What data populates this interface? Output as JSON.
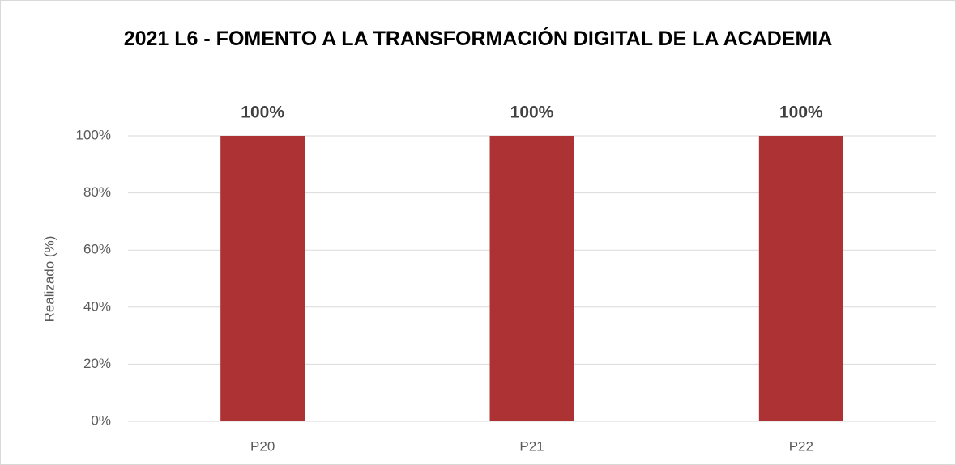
{
  "chart_data": {
    "type": "bar",
    "title": "2021 L6 - FOMENTO A LA TRANSFORMACIÓN DIGITAL DE LA ACADEMIA",
    "y_label": "Realizado (%)",
    "categories": [
      "P20",
      "P21",
      "P22"
    ],
    "values": [
      100,
      100,
      100
    ],
    "value_labels": [
      "100%",
      "100%",
      "100%"
    ],
    "color": "#ad3234",
    "ylim": [
      0,
      100
    ],
    "yticks": [
      {
        "value": 0,
        "label": "0%"
      },
      {
        "value": 20,
        "label": "20%"
      },
      {
        "value": 40,
        "label": "40%"
      },
      {
        "value": 60,
        "label": "60%"
      },
      {
        "value": 80,
        "label": "80%"
      },
      {
        "value": 100,
        "label": "100%"
      }
    ],
    "grid": true
  }
}
